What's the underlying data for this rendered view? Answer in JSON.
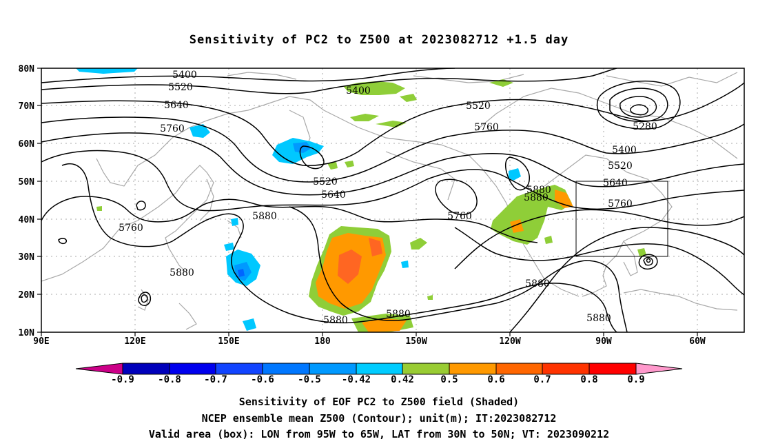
{
  "title": "Sensitivity of PC2 to Z500 at 2023082712 +1.5 day",
  "lat_labels": [
    "80N",
    "70N",
    "60N",
    "50N",
    "40N",
    "30N",
    "20N",
    "10N"
  ],
  "lon_labels": [
    "90E",
    "120E",
    "150E",
    "180",
    "150W",
    "120W",
    "90W",
    "60W"
  ],
  "contours": {
    "color": "#000000",
    "labels": [
      "5400",
      "5520",
      "5640",
      "5760",
      "5400",
      "5520",
      "5760",
      "5280",
      "5400",
      "5520",
      "5640",
      "5760",
      "5880",
      "5880",
      "5520",
      "5640",
      "5760",
      "5880",
      "5760",
      "5880",
      "5880",
      "5880",
      "5880",
      "5880"
    ]
  },
  "shading": {
    "positive_colors": [
      "#8fce38",
      "#ff9900",
      "#ff6622",
      "#ff3322"
    ],
    "negative_colors": [
      "#00c8ff",
      "#0099ff",
      "#0066ff"
    ]
  },
  "colorbar": {
    "colors": [
      "#cc0088",
      "#0000bb",
      "#0000ee",
      "#1144ff",
      "#0077ff",
      "#0099ff",
      "#00ccff",
      "#ffffff",
      "#99cc33",
      "#ff9900",
      "#ff6600",
      "#ff3300",
      "#ff0000",
      "#ff99cc"
    ],
    "labels": [
      "-0.9",
      "-0.8",
      "-0.7",
      "-0.6",
      "-0.5",
      "-0.42",
      "0.42",
      "0.5",
      "0.6",
      "0.7",
      "0.8",
      "0.9"
    ]
  },
  "valid_box": {
    "lon": [
      "95W",
      "65W"
    ],
    "lat": [
      "30N",
      "50N"
    ]
  },
  "captions": {
    "line1": "Sensitivity of EOF PC2 to Z500 field (Shaded)",
    "line2": "NCEP ensemble mean Z500 (Contour); unit(m); IT:2023082712",
    "line3": "Valid area (box): LON from 95W to 65W, LAT from 30N to 50N; VT: 2023090212"
  }
}
